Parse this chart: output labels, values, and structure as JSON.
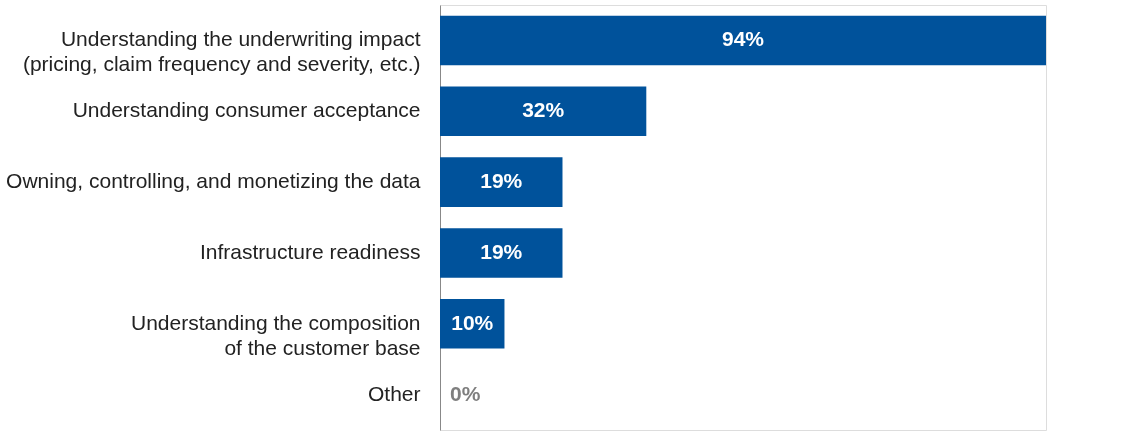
{
  "chart_data": {
    "type": "bar",
    "orientation": "horizontal",
    "categories": [
      "Understanding the underwriting impact\n(pricing, claim frequency and severity, etc.)",
      "Understanding consumer acceptance",
      "Owning, controlling, and monetizing the data",
      "Infrastructure readiness",
      "Understanding the composition\nof the customer base",
      "Other"
    ],
    "values": [
      94,
      32,
      19,
      19,
      10,
      0
    ],
    "value_labels": [
      "94%",
      "32%",
      "19%",
      "19%",
      "10%",
      "0%"
    ],
    "color": "#00529b"
  }
}
